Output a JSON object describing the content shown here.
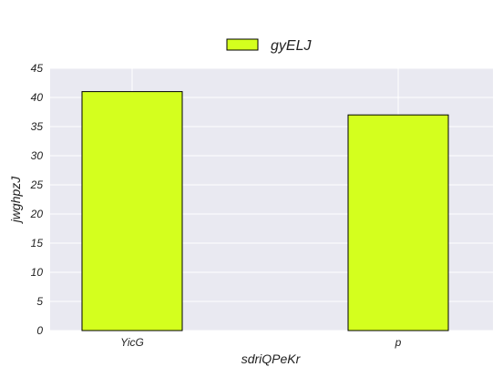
{
  "chart_data": {
    "type": "bar",
    "categories": [
      "YicG",
      "p"
    ],
    "series": [
      {
        "name": "gyELJ",
        "values": [
          41,
          37
        ],
        "color": "#d4ff1e"
      }
    ],
    "xlabel": "sdriQPeKr",
    "ylabel": "jwghpzJ",
    "ylim": [
      0,
      45
    ],
    "yticks": [
      0,
      5,
      10,
      15,
      20,
      25,
      30,
      35,
      40,
      45
    ],
    "grid": true,
    "legend_position": "top-center",
    "plot_background": "#e9e9f1",
    "grid_color": "#ffffff",
    "bar_edge_color": "#000000"
  }
}
